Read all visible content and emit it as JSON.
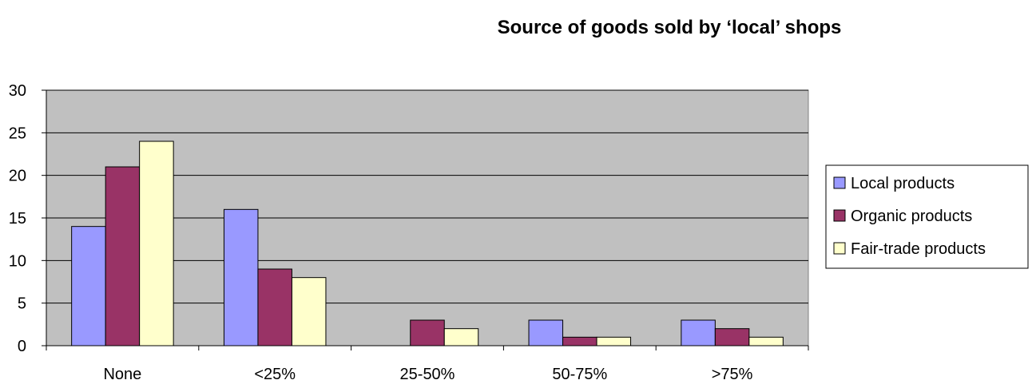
{
  "chart_data": {
    "type": "bar",
    "title": "Source of goods sold by ‘local’ shops",
    "xlabel": "",
    "ylabel": "",
    "categories": [
      "None",
      "<25%",
      "25-50%",
      "50-75%",
      ">75%"
    ],
    "series": [
      {
        "name": "Local products",
        "values": [
          14,
          16,
          0,
          3,
          3
        ],
        "color": "#9999ff"
      },
      {
        "name": "Organic products",
        "values": [
          21,
          9,
          3,
          1,
          2
        ],
        "color": "#993366"
      },
      {
        "name": "Fair-trade products",
        "values": [
          24,
          8,
          2,
          1,
          1
        ],
        "color": "#ffffcc"
      }
    ],
    "ylim": [
      0,
      30
    ],
    "yticks": [
      0,
      5,
      10,
      15,
      20,
      25,
      30
    ],
    "grid": true,
    "plot_background": "#c0c0c0",
    "legend_position": "right"
  }
}
